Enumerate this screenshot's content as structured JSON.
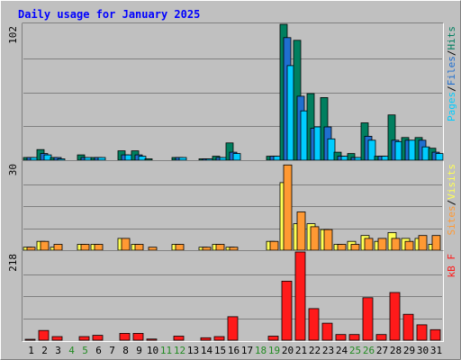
{
  "colors": {
    "background": "#C0C0C0",
    "plot_background": "#C0C0C0",
    "grid": "#808080",
    "frame_dark": "#808080",
    "frame_light": "#FFFFFF",
    "title": "#0000FF",
    "weekday_label": "#000000",
    "weekend_label": "#228B22",
    "hits": "#007F5F",
    "files": "#1F6FD0",
    "pages": "#00CCFF",
    "visits": "#FFFF55",
    "sites": "#FF9933",
    "kbytes": "#FF1A1A"
  },
  "chart_data": {
    "type": "bar",
    "title": "Daily usage for January 2025",
    "categories": [
      "1",
      "2",
      "3",
      "4",
      "5",
      "6",
      "7",
      "8",
      "9",
      "10",
      "11",
      "12",
      "13",
      "14",
      "15",
      "16",
      "17",
      "18",
      "19",
      "20",
      "21",
      "22",
      "23",
      "24",
      "25",
      "26",
      "27",
      "28",
      "29",
      "30",
      "31"
    ],
    "weekend_days": [
      "4",
      "5",
      "11",
      "12",
      "18",
      "19",
      "25",
      "26"
    ],
    "panels": [
      {
        "id": "hits_files_pages",
        "y_max": 102,
        "y_max_label": "102",
        "legend": [
          {
            "name": "Pages",
            "color_key": "pages"
          },
          {
            "sep": "/"
          },
          {
            "name": "Files",
            "color_key": "files"
          },
          {
            "sep": "/"
          },
          {
            "name": "Hits",
            "color_key": "hits"
          }
        ],
        "series": [
          {
            "name": "Hits",
            "color_key": "hits",
            "values": [
              2,
              8,
              2,
              0,
              4,
              2,
              0,
              7,
              7,
              1,
              0,
              2,
              0,
              1,
              3,
              13,
              0,
              0,
              3,
              102,
              90,
              50,
              47,
              6,
              5,
              28,
              3,
              34,
              17,
              17,
              9
            ]
          },
          {
            "name": "Files",
            "color_key": "files",
            "values": [
              2,
              5,
              2,
              0,
              2,
              2,
              0,
              4,
              4,
              0,
              0,
              2,
              0,
              1,
              2,
              6,
              0,
              0,
              3,
              92,
              48,
              24,
              25,
              3,
              2,
              18,
              3,
              15,
              15,
              15,
              6
            ]
          },
          {
            "name": "Pages",
            "color_key": "pages",
            "values": [
              2,
              4,
              1,
              0,
              2,
              2,
              0,
              4,
              3,
              0,
              0,
              2,
              0,
              1,
              2,
              5,
              0,
              0,
              3,
              71,
              37,
              25,
              16,
              3,
              2,
              15,
              3,
              14,
              15,
              10,
              5
            ]
          }
        ]
      },
      {
        "id": "visits_sites",
        "y_max": 30,
        "y_max_label": "30",
        "legend": [
          {
            "name": "Sites",
            "color_key": "sites"
          },
          {
            "sep": "/"
          },
          {
            "name": "Visits",
            "color_key": "visits"
          }
        ],
        "series": [
          {
            "name": "Visits",
            "color_key": "visits",
            "values": [
              1,
              3,
              1,
              0,
              2,
              2,
              0,
              4,
              2,
              0,
              0,
              2,
              0,
              1,
              2,
              1,
              0,
              0,
              3,
              23,
              9,
              9,
              7,
              2,
              3,
              5,
              3,
              6,
              4,
              4,
              2
            ]
          },
          {
            "name": "Sites",
            "color_key": "sites",
            "values": [
              1,
              3,
              2,
              0,
              2,
              2,
              0,
              4,
              2,
              1,
              0,
              2,
              0,
              1,
              2,
              1,
              0,
              0,
              3,
              29,
              13,
              8,
              7,
              2,
              2,
              4,
              4,
              4,
              3,
              5,
              5
            ]
          }
        ]
      },
      {
        "id": "kbytes",
        "y_max": 218,
        "y_max_label": "218",
        "legend": [
          {
            "name": "kB F",
            "color_key": "kbytes"
          }
        ],
        "series": [
          {
            "name": "kB F",
            "color_key": "kbytes",
            "values": [
              2,
              24,
              9,
              0,
              9,
              12,
              0,
              17,
              17,
              3,
              0,
              10,
              0,
              6,
              9,
              58,
              0,
              0,
              10,
              146,
              218,
              78,
              42,
              14,
              14,
              105,
              14,
              118,
              64,
              38,
              26
            ]
          }
        ]
      }
    ]
  }
}
